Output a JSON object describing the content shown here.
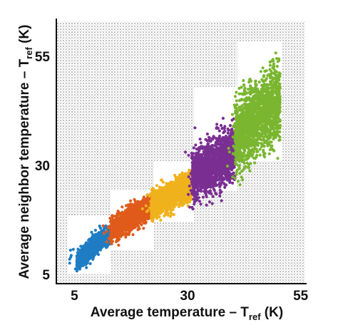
{
  "chart_data": {
    "type": "scatter",
    "title": "",
    "xlabel": {
      "prefix": "Average temperature – T",
      "sub": "ref",
      "suffix": " (K)"
    },
    "ylabel": {
      "prefix": "Average neighbor temperature – T",
      "sub": "ref",
      "suffix": " (K)"
    },
    "xlim": [
      1,
      56
    ],
    "ylim": [
      3,
      63
    ],
    "x_ticks": [
      5,
      30,
      55
    ],
    "y_ticks": [
      5,
      30,
      55
    ],
    "x_tick_labels": [
      "5",
      "30",
      "55"
    ],
    "y_tick_labels": [
      "5",
      "30",
      "55"
    ],
    "grid": false,
    "legend": "none",
    "background_pattern": "dotted",
    "series": [
      {
        "color": "#1f7dc4",
        "x_range": [
          5.5,
          13.0
        ],
        "y_center_start": 8.0,
        "y_center_end": 14.5,
        "y_spread": 2.5,
        "points": 900
      },
      {
        "color": "#e05b1b",
        "x_range": [
          13.0,
          22.0
        ],
        "y_center_start": 15.0,
        "y_center_end": 20.5,
        "y_spread": 3.0,
        "points": 1100
      },
      {
        "color": "#efb21d",
        "x_range": [
          22.0,
          31.0
        ],
        "y_center_start": 20.5,
        "y_center_end": 25.5,
        "y_spread": 3.5,
        "points": 1300
      },
      {
        "color": "#7a2f92",
        "x_range": [
          31.0,
          40.5
        ],
        "y_center_start": 27.5,
        "y_center_end": 33.0,
        "y_spread": 6.5,
        "points": 1500
      },
      {
        "color": "#7ab630",
        "x_range": [
          40.5,
          50.5
        ],
        "y_center_start": 36.0,
        "y_center_end": 45.0,
        "y_spread": 9.0,
        "points": 1800
      }
    ],
    "white_regions": [
      {
        "x": [
          3.5,
          13.0
        ],
        "y": [
          5.0,
          18.5
        ]
      },
      {
        "x": [
          13.0,
          22.5
        ],
        "y": [
          10.5,
          24.5
        ]
      },
      {
        "x": [
          22.5,
          31.5
        ],
        "y": [
          17.0,
          31.0
        ]
      },
      {
        "x": [
          31.5,
          41.0
        ],
        "y": [
          24.0,
          48.0
        ]
      },
      {
        "x": [
          41.0,
          51.0
        ],
        "y": [
          31.0,
          58.5
        ]
      }
    ]
  }
}
